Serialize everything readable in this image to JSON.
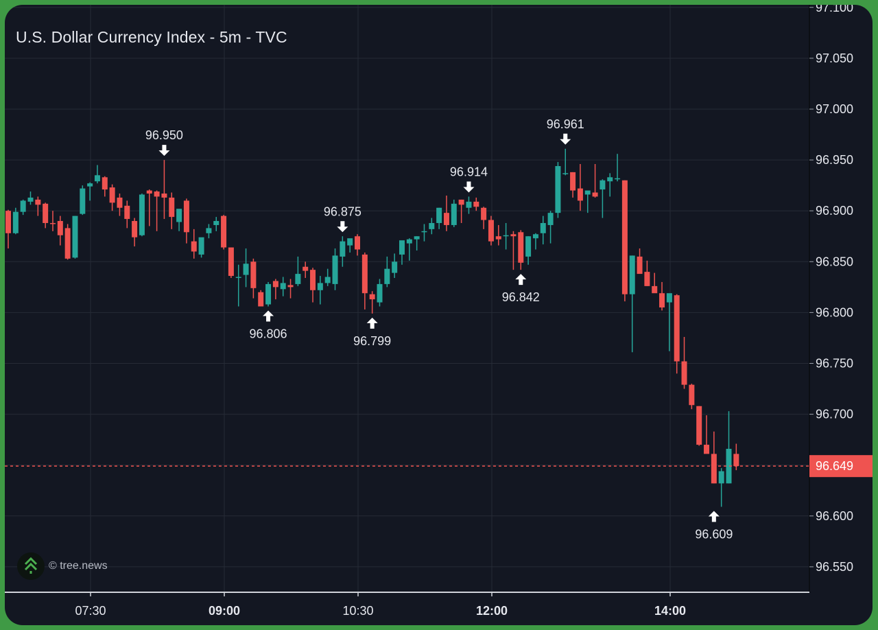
{
  "header": {
    "title": "U.S. Dollar Currency Index - 5m - TVC"
  },
  "watermark": {
    "icon": "tree-logo-icon",
    "text": "© tree.news"
  },
  "colors": {
    "background": "#131722",
    "frame": "#3f9a45",
    "up": "#26a69a",
    "down": "#ef5350",
    "grid": "#262b36",
    "text": "#e6e8ee"
  },
  "price_axis": {
    "labels": [
      "97.100",
      "97.050",
      "97.000",
      "96.950",
      "96.900",
      "96.850",
      "96.800",
      "96.750",
      "96.700",
      "96.650",
      "96.600",
      "96.550"
    ],
    "current_price": "96.649"
  },
  "time_axis": {
    "labels": [
      {
        "text": "07:30",
        "bold": false
      },
      {
        "text": "09:00",
        "bold": true
      },
      {
        "text": "10:30",
        "bold": false
      },
      {
        "text": "12:00",
        "bold": true
      },
      {
        "text": "14:00",
        "bold": true
      }
    ]
  },
  "annotations": [
    {
      "label": "96.950",
      "type": "high"
    },
    {
      "label": "96.806",
      "type": "low"
    },
    {
      "label": "96.875",
      "type": "high"
    },
    {
      "label": "96.799",
      "type": "low"
    },
    {
      "label": "96.914",
      "type": "high"
    },
    {
      "label": "96.842",
      "type": "low"
    },
    {
      "label": "96.961",
      "type": "high"
    },
    {
      "label": "96.609",
      "type": "low"
    }
  ],
  "chart_data": {
    "type": "candlestick",
    "title": "U.S. Dollar Currency Index - 5m - TVC",
    "xlabel": "",
    "ylabel": "",
    "ylim": [
      96.525,
      97.105
    ],
    "interval": "5m",
    "grid": true,
    "y_ticks": [
      97.1,
      97.05,
      97.0,
      96.95,
      96.9,
      96.85,
      96.8,
      96.75,
      96.7,
      96.65,
      96.6,
      96.55
    ],
    "x_ticks": [
      "07:30",
      "09:00",
      "10:30",
      "12:00",
      "14:00"
    ],
    "last_price": 96.649,
    "marked_extremes": [
      {
        "value": 96.95,
        "kind": "high",
        "index": 21
      },
      {
        "value": 96.806,
        "kind": "low",
        "index": 35
      },
      {
        "value": 96.875,
        "kind": "high",
        "index": 45
      },
      {
        "value": 96.799,
        "kind": "low",
        "index": 49
      },
      {
        "value": 96.914,
        "kind": "high",
        "index": 62
      },
      {
        "value": 96.842,
        "kind": "low",
        "index": 69
      },
      {
        "value": 96.961,
        "kind": "high",
        "index": 75
      },
      {
        "value": 96.609,
        "kind": "low",
        "index": 95
      }
    ],
    "candles": [
      {
        "o": 96.9,
        "h": 96.901,
        "l": 96.863,
        "c": 96.878
      },
      {
        "o": 96.878,
        "h": 96.903,
        "l": 96.877,
        "c": 96.899
      },
      {
        "o": 96.899,
        "h": 96.911,
        "l": 96.896,
        "c": 96.91
      },
      {
        "o": 96.909,
        "h": 96.919,
        "l": 96.906,
        "c": 96.913
      },
      {
        "o": 96.911,
        "h": 96.914,
        "l": 96.895,
        "c": 96.906
      },
      {
        "o": 96.907,
        "h": 96.908,
        "l": 96.883,
        "c": 96.888
      },
      {
        "o": 96.888,
        "h": 96.9,
        "l": 96.88,
        "c": 96.887
      },
      {
        "o": 96.89,
        "h": 96.895,
        "l": 96.866,
        "c": 96.876
      },
      {
        "o": 96.883,
        "h": 96.887,
        "l": 96.852,
        "c": 96.853
      },
      {
        "o": 96.854,
        "h": 96.895,
        "l": 96.853,
        "c": 96.895
      },
      {
        "o": 96.897,
        "h": 96.925,
        "l": 96.896,
        "c": 96.922
      },
      {
        "o": 96.924,
        "h": 96.928,
        "l": 96.91,
        "c": 96.927
      },
      {
        "o": 96.929,
        "h": 96.945,
        "l": 96.927,
        "c": 96.935
      },
      {
        "o": 96.933,
        "h": 96.934,
        "l": 96.914,
        "c": 96.921
      },
      {
        "o": 96.923,
        "h": 96.926,
        "l": 96.9,
        "c": 96.908
      },
      {
        "o": 96.913,
        "h": 96.917,
        "l": 96.895,
        "c": 96.903
      },
      {
        "o": 96.905,
        "h": 96.91,
        "l": 96.883,
        "c": 96.892
      },
      {
        "o": 96.89,
        "h": 96.893,
        "l": 96.865,
        "c": 96.874
      },
      {
        "o": 96.876,
        "h": 96.917,
        "l": 96.875,
        "c": 96.916
      },
      {
        "o": 96.92,
        "h": 96.921,
        "l": 96.885,
        "c": 96.917
      },
      {
        "o": 96.919,
        "h": 96.92,
        "l": 96.88,
        "c": 96.914
      },
      {
        "o": 96.917,
        "h": 96.95,
        "l": 96.892,
        "c": 96.913
      },
      {
        "o": 96.913,
        "h": 96.918,
        "l": 96.882,
        "c": 96.894
      },
      {
        "o": 96.889,
        "h": 96.898,
        "l": 96.88,
        "c": 96.902
      },
      {
        "o": 96.91,
        "h": 96.912,
        "l": 96.868,
        "c": 96.879
      },
      {
        "o": 96.87,
        "h": 96.882,
        "l": 96.853,
        "c": 96.86
      },
      {
        "o": 96.857,
        "h": 96.867,
        "l": 96.854,
        "c": 96.874
      },
      {
        "o": 96.878,
        "h": 96.887,
        "l": 96.873,
        "c": 96.883
      },
      {
        "o": 96.886,
        "h": 96.894,
        "l": 96.88,
        "c": 96.89
      },
      {
        "o": 96.895,
        "h": 96.896,
        "l": 96.862,
        "c": 96.864
      },
      {
        "o": 96.864,
        "h": 96.864,
        "l": 96.834,
        "c": 96.836
      },
      {
        "o": 96.835,
        "h": 96.847,
        "l": 96.806,
        "c": 96.835
      },
      {
        "o": 96.837,
        "h": 96.863,
        "l": 96.825,
        "c": 96.848
      },
      {
        "o": 96.85,
        "h": 96.853,
        "l": 96.814,
        "c": 96.824
      },
      {
        "o": 96.82,
        "h": 96.822,
        "l": 96.807,
        "c": 96.806
      },
      {
        "o": 96.808,
        "h": 96.83,
        "l": 96.806,
        "c": 96.828
      },
      {
        "o": 96.831,
        "h": 96.833,
        "l": 96.813,
        "c": 96.825
      },
      {
        "o": 96.823,
        "h": 96.835,
        "l": 96.816,
        "c": 96.829
      },
      {
        "o": 96.827,
        "h": 96.833,
        "l": 96.814,
        "c": 96.825
      },
      {
        "o": 96.828,
        "h": 96.855,
        "l": 96.826,
        "c": 96.838
      },
      {
        "o": 96.845,
        "h": 96.85,
        "l": 96.834,
        "c": 96.841
      },
      {
        "o": 96.842,
        "h": 96.844,
        "l": 96.81,
        "c": 96.822
      },
      {
        "o": 96.822,
        "h": 96.836,
        "l": 96.808,
        "c": 96.829
      },
      {
        "o": 96.829,
        "h": 96.843,
        "l": 96.826,
        "c": 96.835
      },
      {
        "o": 96.828,
        "h": 96.863,
        "l": 96.822,
        "c": 96.856
      },
      {
        "o": 96.855,
        "h": 96.875,
        "l": 96.845,
        "c": 96.87
      },
      {
        "o": 96.866,
        "h": 96.872,
        "l": 96.859,
        "c": 96.873
      },
      {
        "o": 96.875,
        "h": 96.877,
        "l": 96.856,
        "c": 96.862
      },
      {
        "o": 96.857,
        "h": 96.859,
        "l": 96.803,
        "c": 96.819
      },
      {
        "o": 96.818,
        "h": 96.821,
        "l": 96.799,
        "c": 96.813
      },
      {
        "o": 96.81,
        "h": 96.833,
        "l": 96.806,
        "c": 96.828
      },
      {
        "o": 96.828,
        "h": 96.855,
        "l": 96.825,
        "c": 96.843
      },
      {
        "o": 96.839,
        "h": 96.858,
        "l": 96.834,
        "c": 96.85
      },
      {
        "o": 96.857,
        "h": 96.868,
        "l": 96.847,
        "c": 96.871
      },
      {
        "o": 96.868,
        "h": 96.873,
        "l": 96.851,
        "c": 96.872
      },
      {
        "o": 96.872,
        "h": 96.875,
        "l": 96.861,
        "c": 96.875
      },
      {
        "o": 96.879,
        "h": 96.887,
        "l": 96.87,
        "c": 96.88
      },
      {
        "o": 96.882,
        "h": 96.893,
        "l": 96.877,
        "c": 96.888
      },
      {
        "o": 96.888,
        "h": 96.903,
        "l": 96.882,
        "c": 96.903
      },
      {
        "o": 96.898,
        "h": 96.915,
        "l": 96.88,
        "c": 96.886
      },
      {
        "o": 96.886,
        "h": 96.911,
        "l": 96.884,
        "c": 96.907
      },
      {
        "o": 96.911,
        "h": 96.911,
        "l": 96.888,
        "c": 96.906
      },
      {
        "o": 96.903,
        "h": 96.914,
        "l": 96.897,
        "c": 96.909
      },
      {
        "o": 96.909,
        "h": 96.913,
        "l": 96.9,
        "c": 96.904
      },
      {
        "o": 96.903,
        "h": 96.904,
        "l": 96.882,
        "c": 96.891
      },
      {
        "o": 96.891,
        "h": 96.895,
        "l": 96.866,
        "c": 96.87
      },
      {
        "o": 96.875,
        "h": 96.886,
        "l": 96.866,
        "c": 96.872
      },
      {
        "o": 96.875,
        "h": 96.888,
        "l": 96.862,
        "c": 96.876
      },
      {
        "o": 96.877,
        "h": 96.88,
        "l": 96.842,
        "c": 96.875
      },
      {
        "o": 96.879,
        "h": 96.881,
        "l": 96.842,
        "c": 96.849
      },
      {
        "o": 96.855,
        "h": 96.875,
        "l": 96.847,
        "c": 96.875
      },
      {
        "o": 96.873,
        "h": 96.878,
        "l": 96.862,
        "c": 96.877
      },
      {
        "o": 96.878,
        "h": 96.895,
        "l": 96.867,
        "c": 96.888
      },
      {
        "o": 96.886,
        "h": 96.9,
        "l": 96.868,
        "c": 96.898
      },
      {
        "o": 96.898,
        "h": 96.948,
        "l": 96.893,
        "c": 96.944
      },
      {
        "o": 96.936,
        "h": 96.961,
        "l": 96.935,
        "c": 96.937
      },
      {
        "o": 96.938,
        "h": 96.938,
        "l": 96.913,
        "c": 96.92
      },
      {
        "o": 96.922,
        "h": 96.946,
        "l": 96.9,
        "c": 96.91
      },
      {
        "o": 96.916,
        "h": 96.917,
        "l": 96.898,
        "c": 96.92
      },
      {
        "o": 96.918,
        "h": 96.946,
        "l": 96.913,
        "c": 96.914
      },
      {
        "o": 96.921,
        "h": 96.931,
        "l": 96.893,
        "c": 96.93
      },
      {
        "o": 96.929,
        "h": 96.937,
        "l": 96.914,
        "c": 96.933
      },
      {
        "o": 96.931,
        "h": 96.956,
        "l": 96.929,
        "c": 96.932
      },
      {
        "o": 96.93,
        "h": 96.93,
        "l": 96.811,
        "c": 96.818
      },
      {
        "o": 96.818,
        "h": 96.856,
        "l": 96.761,
        "c": 96.856
      },
      {
        "o": 96.855,
        "h": 96.863,
        "l": 96.839,
        "c": 96.838
      },
      {
        "o": 96.84,
        "h": 96.851,
        "l": 96.826,
        "c": 96.826
      },
      {
        "o": 96.826,
        "h": 96.839,
        "l": 96.822,
        "c": 96.819
      },
      {
        "o": 96.819,
        "h": 96.83,
        "l": 96.802,
        "c": 96.805
      },
      {
        "o": 96.81,
        "h": 96.813,
        "l": 96.762,
        "c": 96.819
      },
      {
        "o": 96.817,
        "h": 96.818,
        "l": 96.74,
        "c": 96.752
      },
      {
        "o": 96.752,
        "h": 96.776,
        "l": 96.725,
        "c": 96.729
      },
      {
        "o": 96.729,
        "h": 96.73,
        "l": 96.705,
        "c": 96.709
      },
      {
        "o": 96.708,
        "h": 96.708,
        "l": 96.669,
        "c": 96.67
      },
      {
        "o": 96.67,
        "h": 96.699,
        "l": 96.669,
        "c": 96.661
      },
      {
        "o": 96.661,
        "h": 96.683,
        "l": 96.632,
        "c": 96.632
      },
      {
        "o": 96.632,
        "h": 96.647,
        "l": 96.609,
        "c": 96.644
      },
      {
        "o": 96.632,
        "h": 96.703,
        "l": 96.632,
        "c": 96.666
      },
      {
        "o": 96.661,
        "h": 96.671,
        "l": 96.645,
        "c": 96.649
      }
    ]
  }
}
